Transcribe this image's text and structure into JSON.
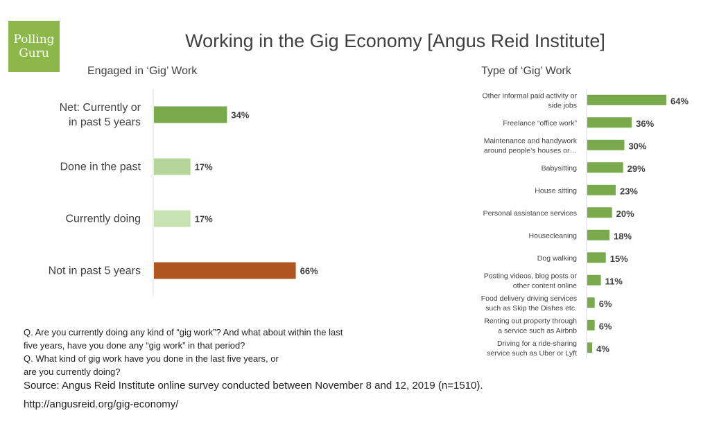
{
  "logo": {
    "line1": "Polling",
    "line2": "Guru"
  },
  "title": "Working in the Gig Economy [Angus Reid Institute]",
  "notes": {
    "q1_line1": "Q. Are you currently doing any kind of “gig work”? And what about within the last",
    "q1_line2": "five years, have you done any “gig work” in that period?",
    "q2_line1": "Q. What kind of gig work have you done in the last five years, or",
    "q2_line2": "are you currently doing?",
    "source": "Source:  Angus Reid Institute online survey conducted between November 8 and 12, 2019 (n=1510).",
    "url": "http://angusreid.org/gig-economy/"
  },
  "chart_data": [
    {
      "type": "bar",
      "orientation": "horizontal",
      "title": "Engaged in ‘Gig’ Work",
      "categories": [
        [
          "Net: Currently or",
          "in past 5 years"
        ],
        [
          "Done in the past"
        ],
        [
          "Currently doing"
        ],
        [
          "Not in past 5 years"
        ]
      ],
      "values": [
        34,
        17,
        17,
        66
      ],
      "labels": [
        "34%",
        "17%",
        "17%",
        "66%"
      ],
      "colors": [
        "#78a94a",
        "#b4d69a",
        "#c8e2b2",
        "#ad5620"
      ],
      "xlim": [
        0,
        100
      ],
      "grid": false
    },
    {
      "type": "bar",
      "orientation": "horizontal",
      "title": "Type of ‘Gig’ Work",
      "categories": [
        [
          "Other informal paid activity or",
          "side jobs"
        ],
        [
          "Freelance “office work”"
        ],
        [
          "Maintenance and handywork",
          "around people’s houses or…"
        ],
        [
          "Babysitting"
        ],
        [
          "House sitting"
        ],
        [
          "Personal assistance services"
        ],
        [
          "Housecleaning"
        ],
        [
          "Dog walking"
        ],
        [
          "Posting videos, blog posts or",
          "other content online"
        ],
        [
          "Food delivery driving services",
          "such as Skip the Dishes etc."
        ],
        [
          "Renting out property through",
          "a service such as Airbnb"
        ],
        [
          "Driving for a ride-sharing",
          "service such as Uber or Lyft"
        ]
      ],
      "values": [
        64,
        36,
        30,
        29,
        23,
        20,
        18,
        15,
        11,
        6,
        6,
        4
      ],
      "labels": [
        "64%",
        "36%",
        "30%",
        "29%",
        "23%",
        "20%",
        "18%",
        "15%",
        "11%",
        "6%",
        "6%",
        "4%"
      ],
      "color": "#78a94a",
      "xlim": [
        0,
        100
      ],
      "grid": false
    }
  ]
}
